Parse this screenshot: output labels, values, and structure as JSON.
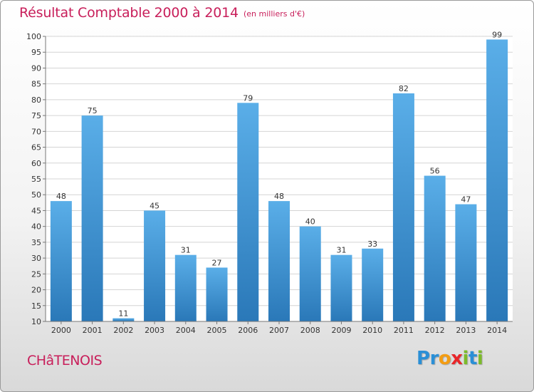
{
  "header": {
    "title": "Résultat Comptable 2000 à 2014",
    "subtitle": "(en milliers d'€)"
  },
  "commune": "CHâTENOIS",
  "logo": {
    "letters": [
      {
        "char": "P",
        "color": "#2a8fd6"
      },
      {
        "char": "r",
        "color": "#2a8fd6"
      },
      {
        "char": "o",
        "color": "#f39c12"
      },
      {
        "char": "x",
        "color": "#e8262a"
      },
      {
        "char": "i",
        "color": "#7cbb2a"
      },
      {
        "char": "t",
        "color": "#2a8fd6"
      },
      {
        "char": "i",
        "color": "#7cbb2a"
      }
    ]
  },
  "chart_data": {
    "type": "bar",
    "categories": [
      "2000",
      "2001",
      "2002",
      "2003",
      "2004",
      "2005",
      "2006",
      "2007",
      "2008",
      "2009",
      "2010",
      "2011",
      "2012",
      "2013",
      "2014"
    ],
    "values": [
      48,
      75,
      11,
      45,
      31,
      27,
      79,
      48,
      40,
      31,
      33,
      82,
      56,
      47,
      99
    ],
    "ylim": [
      10,
      100
    ],
    "ytick_step": 5,
    "grid": true,
    "bar_color_light": "#5aaee8",
    "bar_color_dark": "#2a78b8",
    "grid_color": "#d4d4d4"
  }
}
